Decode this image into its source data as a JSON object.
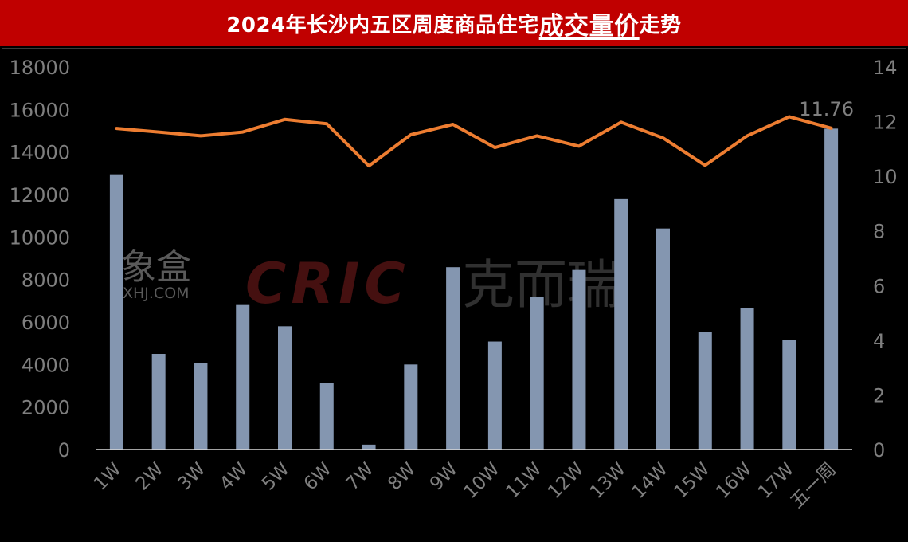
{
  "title": {
    "prefix": "2024年长沙内五区周度商品住宅",
    "emphasis": "成交量价",
    "suffix": "走势"
  },
  "watermarks": {
    "xhj_cn": "象盒",
    "xhj_url": "XHJ.COM",
    "cric": "CRIC",
    "cric_cn": "克而瑞"
  },
  "colors": {
    "bar": "#8496b0",
    "line": "#ed7d31",
    "title_bg": "#c00000",
    "axis_text": "#7f7f7f"
  },
  "chart_data": {
    "type": "bar",
    "categories": [
      "1W",
      "2W",
      "3W",
      "4W",
      "5W",
      "6W",
      "7W",
      "8W",
      "9W",
      "10W",
      "11W",
      "12W",
      "13W",
      "14W",
      "15W",
      "16W",
      "17W",
      "五一周"
    ],
    "series": [
      {
        "type": "bar",
        "axis": "left",
        "values": [
          12950,
          4500,
          4050,
          6800,
          5800,
          3150,
          230,
          4000,
          8580,
          5080,
          7200,
          8450,
          11780,
          10400,
          5520,
          6650,
          5150,
          15100
        ]
      },
      {
        "type": "line",
        "axis": "right",
        "values": [
          11.75,
          11.62,
          11.48,
          11.62,
          12.08,
          11.92,
          10.38,
          11.52,
          11.9,
          11.05,
          11.48,
          11.1,
          11.98,
          11.4,
          10.4,
          11.48,
          12.18,
          11.76
        ]
      }
    ],
    "ylim_left": [
      0,
      18000
    ],
    "yticks_left": [
      "0",
      "2000",
      "4000",
      "6000",
      "8000",
      "10000",
      "12000",
      "14000",
      "16000",
      "18000"
    ],
    "ylim_right": [
      0,
      14
    ],
    "yticks_right": [
      "0",
      "2",
      "4",
      "6",
      "8",
      "10",
      "12",
      "14"
    ],
    "data_labels": [
      {
        "series": 1,
        "index": 17,
        "text": "11.76"
      }
    ],
    "grid": false,
    "legend": "none"
  }
}
